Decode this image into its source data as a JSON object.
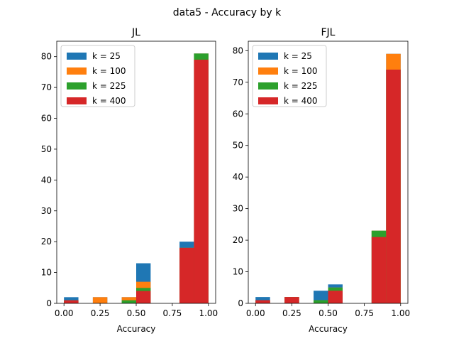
{
  "suptitle": "data5 - Accuracy by k",
  "chart_data": [
    {
      "type": "bar",
      "chart_kind": "stacked histogram",
      "title": "JL",
      "xlabel": "Accuracy",
      "ylabel": "",
      "xlim": [
        -0.05,
        1.05
      ],
      "ylim": [
        0,
        85
      ],
      "xticks": [
        "0.00",
        "0.25",
        "0.50",
        "0.75",
        "1.00"
      ],
      "yticks": [
        "0",
        "10",
        "20",
        "30",
        "40",
        "50",
        "60",
        "70",
        "80"
      ],
      "bins": [
        [
          0.0,
          0.1
        ],
        [
          0.1,
          0.2
        ],
        [
          0.2,
          0.3
        ],
        [
          0.3,
          0.4
        ],
        [
          0.4,
          0.5
        ],
        [
          0.5,
          0.6
        ],
        [
          0.6,
          0.7
        ],
        [
          0.7,
          0.8
        ],
        [
          0.8,
          0.9
        ],
        [
          0.9,
          1.0
        ]
      ],
      "legend_position": "top-left",
      "series": [
        {
          "name": "k = 25",
          "color": "#1f77b4",
          "values": [
            2,
            0,
            2,
            0,
            2,
            13,
            0,
            0,
            20,
            81
          ]
        },
        {
          "name": "k = 100",
          "color": "#ff7f0e",
          "values": [
            1,
            0,
            2,
            0,
            2,
            7,
            0,
            0,
            18,
            81
          ]
        },
        {
          "name": "k = 225",
          "color": "#2ca02c",
          "values": [
            1,
            0,
            0,
            0,
            1,
            5,
            0,
            0,
            18,
            81
          ]
        },
        {
          "name": "k = 400",
          "color": "#d62728",
          "values": [
            1,
            0,
            0,
            0,
            0,
            4,
            0,
            0,
            18,
            79
          ]
        }
      ]
    },
    {
      "type": "bar",
      "chart_kind": "stacked histogram",
      "title": "FJL",
      "xlabel": "Accuracy",
      "ylabel": "",
      "xlim": [
        -0.05,
        1.05
      ],
      "ylim": [
        0,
        83
      ],
      "xticks": [
        "0.00",
        "0.25",
        "0.50",
        "0.75",
        "1.00"
      ],
      "yticks": [
        "0",
        "10",
        "20",
        "30",
        "40",
        "50",
        "60",
        "70",
        "80"
      ],
      "bins": [
        [
          0.0,
          0.1
        ],
        [
          0.1,
          0.2
        ],
        [
          0.2,
          0.3
        ],
        [
          0.3,
          0.4
        ],
        [
          0.4,
          0.5
        ],
        [
          0.5,
          0.6
        ],
        [
          0.6,
          0.7
        ],
        [
          0.7,
          0.8
        ],
        [
          0.8,
          0.9
        ],
        [
          0.9,
          1.0
        ]
      ],
      "legend_position": "top-left",
      "series": [
        {
          "name": "k = 25",
          "color": "#1f77b4",
          "values": [
            2,
            0,
            2,
            0,
            4,
            6,
            0,
            0,
            23,
            79
          ]
        },
        {
          "name": "k = 100",
          "color": "#ff7f0e",
          "values": [
            1,
            0,
            2,
            0,
            1,
            5,
            0,
            0,
            23,
            79
          ]
        },
        {
          "name": "k = 225",
          "color": "#2ca02c",
          "values": [
            1,
            0,
            2,
            0,
            1,
            5,
            0,
            0,
            23,
            74
          ]
        },
        {
          "name": "k = 400",
          "color": "#d62728",
          "values": [
            1,
            0,
            2,
            0,
            0,
            4,
            0,
            0,
            21,
            74
          ]
        }
      ]
    }
  ]
}
